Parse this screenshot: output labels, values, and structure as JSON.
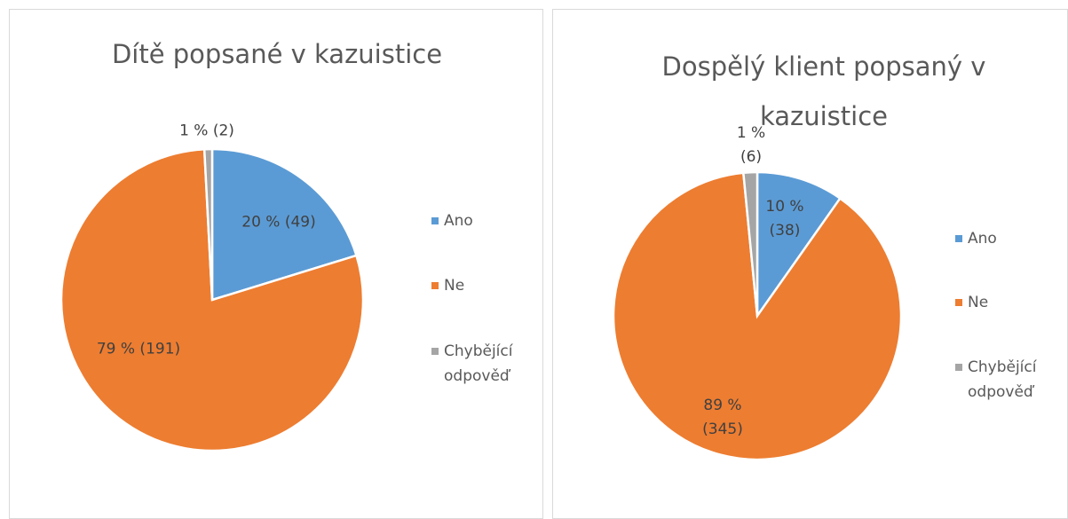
{
  "chart_data": [
    {
      "type": "pie",
      "title": "Dítě popsané v kazuistice",
      "categories": [
        "Ano",
        "Ne",
        "Chybějící odpověď"
      ],
      "values": [
        49,
        191,
        2
      ],
      "value_labels": [
        "20 % (49)",
        "79 % (191)",
        "1 % (2)"
      ],
      "colors": [
        "#5b9bd5",
        "#ed7d31",
        "#a5a5a5"
      ],
      "legend": "right"
    },
    {
      "type": "pie",
      "title": "Dospělý klient popsaný v kazuistice",
      "categories": [
        "Ano",
        "Ne",
        "Chybějící odpověď"
      ],
      "values": [
        38,
        345,
        6
      ],
      "value_labels": [
        "10 % (38)",
        "89 % (345)",
        "1 % (6)"
      ],
      "colors": [
        "#5b9bd5",
        "#ed7d31",
        "#a5a5a5"
      ],
      "legend": "right"
    }
  ]
}
